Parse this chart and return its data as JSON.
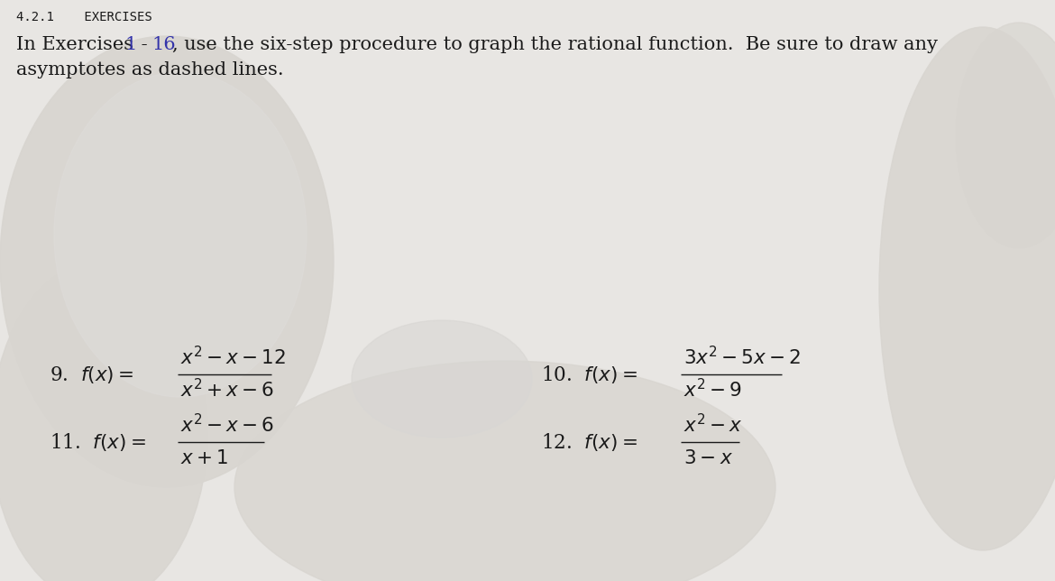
{
  "header": "4.2.1    EXERCISES",
  "intro_text": "In Exercises ",
  "intro_num1": "1",
  "intro_dash": " - ",
  "intro_num2": "16",
  "intro_rest": ", use the six-step procedure to graph the rational function.  Be sure to draw any",
  "intro_line2": "asymptotes as dashed lines.",
  "ex9_num": "9.",
  "ex9_numer": "$x^2 - x - 12$",
  "ex9_denom": "$x^2 + x - 6$",
  "ex10_num": "10.",
  "ex10_numer": "$3x^2 - 5x - 2$",
  "ex10_denom": "$x^2 - 9$",
  "ex11_num": "11.",
  "ex11_numer": "$x^2 - x - 6$",
  "ex11_denom": "$x + 1$",
  "ex12_num": "12.",
  "ex12_numer": "$x^2 - x$",
  "ex12_denom": "$3 - x$",
  "bg_color": "#e8e6e3",
  "paper_color": "#f0eeec",
  "blob_dark": "#c8c5c0",
  "blob_light": "#d8d5d0",
  "text_color": "#1a1a1a",
  "blue_color": "#3333aa",
  "fig_width": 11.7,
  "fig_height": 6.44,
  "dpi": 100
}
